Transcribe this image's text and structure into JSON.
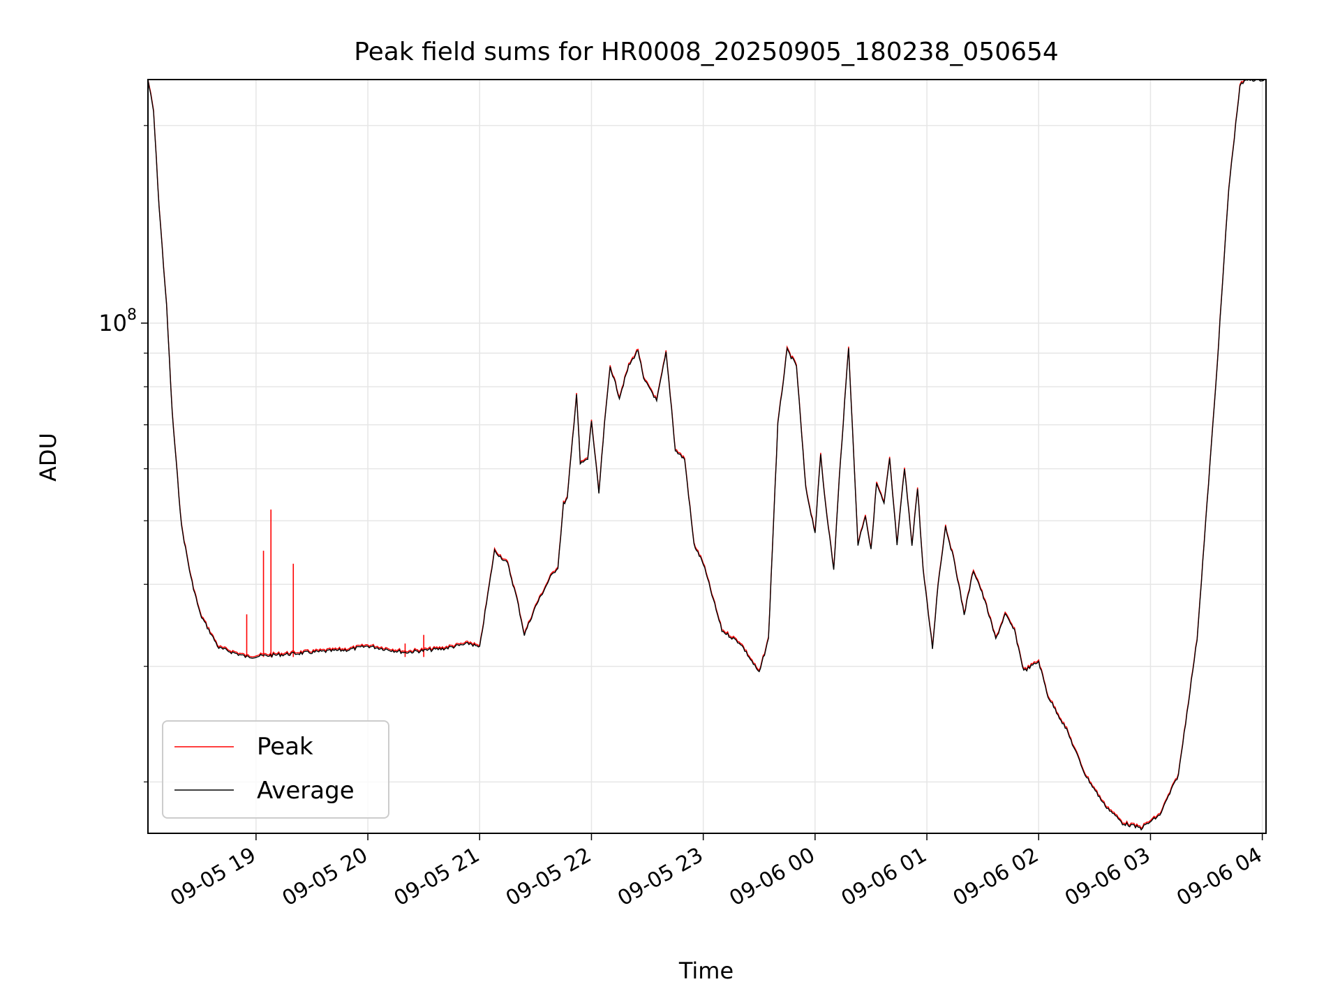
{
  "chart_data": {
    "type": "line",
    "title": "Peak field sums for HR0008_20250905_180238_050654",
    "xlabel": "Time",
    "ylabel": "ADU",
    "yscale": "log",
    "ytick_labels": [
      {
        "base": "10",
        "exp": "8",
        "value": 100000000
      }
    ],
    "xtick_labels": [
      "09-05 19",
      "09-05 20",
      "09-05 21",
      "09-05 22",
      "09-05 23",
      "09-06 00",
      "09-06 01",
      "09-06 02",
      "09-06 03",
      "09-06 04"
    ],
    "xtick_times": [
      "2025-09-05 19:00",
      "2025-09-05 20:00",
      "2025-09-05 21:00",
      "2025-09-05 22:00",
      "2025-09-05 23:00",
      "2025-09-06 00:00",
      "2025-09-06 01:00",
      "2025-09-06 02:00",
      "2025-09-06 03:00",
      "2025-09-06 04:00"
    ],
    "xlim": [
      "2025-09-05 18:02",
      "2025-09-06 04:02"
    ],
    "ylim": [
      16700000,
      235000000
    ],
    "grid": true,
    "legend_position": "lower-left",
    "series": [
      {
        "name": "Average",
        "color": "#000000",
        "points": [
          [
            "2025-09-05 18:02",
            235000000
          ],
          [
            "2025-09-05 18:05",
            210000000
          ],
          [
            "2025-09-05 18:08",
            150000000
          ],
          [
            "2025-09-05 18:12",
            106000000
          ],
          [
            "2025-09-05 18:15",
            73000000
          ],
          [
            "2025-09-05 18:20",
            49000000
          ],
          [
            "2025-09-05 18:25",
            41000000
          ],
          [
            "2025-09-05 18:30",
            36000000
          ],
          [
            "2025-09-05 18:40",
            32000000
          ],
          [
            "2025-09-05 18:55",
            31000000
          ],
          [
            "2025-09-05 19:10",
            31200000
          ],
          [
            "2025-09-05 19:30",
            31500000
          ],
          [
            "2025-09-05 19:50",
            31800000
          ],
          [
            "2025-09-05 20:00",
            32200000
          ],
          [
            "2025-09-05 20:20",
            31500000
          ],
          [
            "2025-09-05 20:40",
            31900000
          ],
          [
            "2025-09-05 20:55",
            32500000
          ],
          [
            "2025-09-05 21:00",
            32000000
          ],
          [
            "2025-09-05 21:08",
            45000000
          ],
          [
            "2025-09-05 21:15",
            43000000
          ],
          [
            "2025-09-05 21:20",
            38000000
          ],
          [
            "2025-09-05 21:24",
            33500000
          ],
          [
            "2025-09-05 21:30",
            37000000
          ],
          [
            "2025-09-05 21:38",
            41000000
          ],
          [
            "2025-09-05 21:42",
            42500000
          ],
          [
            "2025-09-05 21:45",
            53000000
          ],
          [
            "2025-09-05 21:47",
            54000000
          ],
          [
            "2025-09-05 21:52",
            78000000
          ],
          [
            "2025-09-05 21:54",
            61000000
          ],
          [
            "2025-09-05 21:58",
            62000000
          ],
          [
            "2025-09-05 22:00",
            71000000
          ],
          [
            "2025-09-05 22:04",
            55000000
          ],
          [
            "2025-09-05 22:07",
            70000000
          ],
          [
            "2025-09-05 22:10",
            86000000
          ],
          [
            "2025-09-05 22:15",
            77000000
          ],
          [
            "2025-09-05 22:20",
            86000000
          ],
          [
            "2025-09-05 22:25",
            91000000
          ],
          [
            "2025-09-05 22:28",
            82000000
          ],
          [
            "2025-09-05 22:32",
            79000000
          ],
          [
            "2025-09-05 22:35",
            76000000
          ],
          [
            "2025-09-05 22:40",
            90000000
          ],
          [
            "2025-09-05 22:43",
            74000000
          ],
          [
            "2025-09-05 22:45",
            64000000
          ],
          [
            "2025-09-05 22:50",
            62000000
          ],
          [
            "2025-09-05 22:55",
            46000000
          ],
          [
            "2025-09-05 23:00",
            43000000
          ],
          [
            "2025-09-05 23:10",
            34000000
          ],
          [
            "2025-09-05 23:20",
            32500000
          ],
          [
            "2025-09-05 23:30",
            29300000
          ],
          [
            "2025-09-05 23:35",
            33000000
          ],
          [
            "2025-09-05 23:40",
            70000000
          ],
          [
            "2025-09-05 23:45",
            91000000
          ],
          [
            "2025-09-05 23:50",
            86000000
          ],
          [
            "2025-09-05 23:55",
            56000000
          ],
          [
            "2025-09-06 00:00",
            48000000
          ],
          [
            "2025-09-06 00:03",
            63000000
          ],
          [
            "2025-09-06 00:05",
            55000000
          ],
          [
            "2025-09-06 00:10",
            42000000
          ],
          [
            "2025-09-06 00:13",
            58000000
          ],
          [
            "2025-09-06 00:18",
            92000000
          ],
          [
            "2025-09-06 00:23",
            46000000
          ],
          [
            "2025-09-06 00:27",
            51000000
          ],
          [
            "2025-09-06 00:30",
            45000000
          ],
          [
            "2025-09-06 00:33",
            57000000
          ],
          [
            "2025-09-06 00:37",
            53000000
          ],
          [
            "2025-09-06 00:40",
            62000000
          ],
          [
            "2025-09-06 00:44",
            46000000
          ],
          [
            "2025-09-06 00:48",
            60000000
          ],
          [
            "2025-09-06 00:52",
            46000000
          ],
          [
            "2025-09-06 00:55",
            56000000
          ],
          [
            "2025-09-06 00:58",
            42000000
          ],
          [
            "2025-09-06 01:03",
            32000000
          ],
          [
            "2025-09-06 01:06",
            40000000
          ],
          [
            "2025-09-06 01:10",
            49000000
          ],
          [
            "2025-09-06 01:15",
            43000000
          ],
          [
            "2025-09-06 01:20",
            36000000
          ],
          [
            "2025-09-06 01:25",
            42000000
          ],
          [
            "2025-09-06 01:28",
            40000000
          ],
          [
            "2025-09-06 01:32",
            37000000
          ],
          [
            "2025-09-06 01:37",
            33000000
          ],
          [
            "2025-09-06 01:42",
            36000000
          ],
          [
            "2025-09-06 01:47",
            34000000
          ],
          [
            "2025-09-06 01:52",
            29500000
          ],
          [
            "2025-09-06 01:56",
            30000000
          ],
          [
            "2025-09-06 02:00",
            30500000
          ],
          [
            "2025-09-06 02:05",
            27000000
          ],
          [
            "2025-09-06 02:15",
            24000000
          ],
          [
            "2025-09-06 02:25",
            20500000
          ],
          [
            "2025-09-06 02:35",
            18500000
          ],
          [
            "2025-09-06 02:45",
            17300000
          ],
          [
            "2025-09-06 02:55",
            17000000
          ],
          [
            "2025-09-06 03:05",
            17800000
          ],
          [
            "2025-09-06 03:15",
            20500000
          ],
          [
            "2025-09-06 03:25",
            33000000
          ],
          [
            "2025-09-06 03:35",
            80000000
          ],
          [
            "2025-09-06 03:42",
            160000000
          ],
          [
            "2025-09-06 03:48",
            230000000
          ],
          [
            "2025-09-06 03:52",
            235000000
          ],
          [
            "2025-09-06 04:02",
            235000000
          ]
        ]
      },
      {
        "name": "Peak",
        "color": "#ff0000",
        "spikes": [
          [
            "2025-09-05 18:55",
            36000000
          ],
          [
            "2025-09-05 19:04",
            45000000
          ],
          [
            "2025-09-05 19:08",
            52000000
          ],
          [
            "2025-09-05 19:20",
            43000000
          ],
          [
            "2025-09-05 20:20",
            32500000
          ],
          [
            "2025-09-05 20:30",
            33500000
          ]
        ]
      }
    ]
  },
  "legend": {
    "items": [
      "Peak",
      "Average"
    ]
  }
}
